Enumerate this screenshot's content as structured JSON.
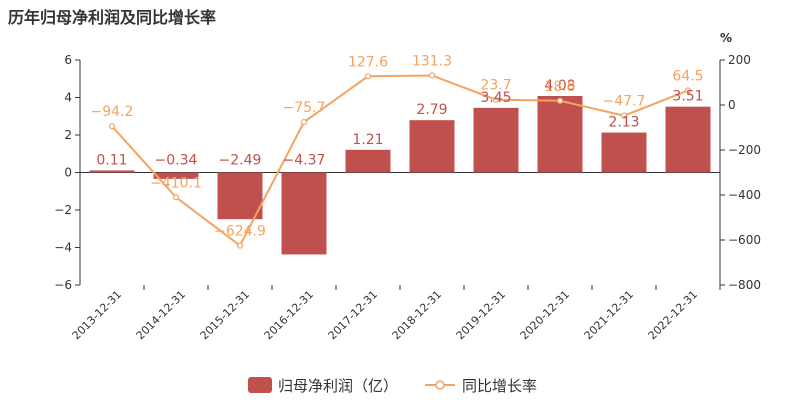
{
  "title": "历年归母净利润及同比增长率",
  "chart_data": {
    "type": "bar+line",
    "title": "历年归母净利润及同比增长率",
    "categories": [
      "2013-12-31",
      "2014-12-31",
      "2015-12-31",
      "2016-12-31",
      "2017-12-31",
      "2018-12-31",
      "2019-12-31",
      "2020-12-31",
      "2021-12-31",
      "2022-12-31"
    ],
    "series": [
      {
        "name": "归母净利润（亿）",
        "type": "bar",
        "axis": "left",
        "color": "#c0504d",
        "values": [
          0.11,
          -0.34,
          -2.49,
          -4.37,
          1.21,
          2.79,
          3.45,
          4.08,
          2.13,
          3.51
        ],
        "labels": [
          "0.11",
          "−0.34",
          "−2.49",
          "−4.37",
          "1.21",
          "2.79",
          "3.45",
          "4.08",
          "2.13",
          "3.51"
        ]
      },
      {
        "name": "同比增长率",
        "type": "line",
        "axis": "right",
        "color": "#f4a460",
        "values": [
          -94.2,
          -410.1,
          -624.9,
          -75.7,
          127.6,
          131.3,
          23.7,
          18.8,
          -47.7,
          64.5
        ],
        "labels": [
          "−94.2",
          "−410.1",
          "−624.9",
          "−75.7",
          "127.6",
          "131.3",
          "23.7",
          "18.8",
          "−47.7",
          "64.5"
        ]
      }
    ],
    "y_left": {
      "min": -6,
      "max": 6,
      "ticks": [
        -6,
        -4,
        -2,
        0,
        2,
        4,
        6
      ],
      "tick_labels": [
        "−6",
        "−4",
        "−2",
        "0",
        "2",
        "4",
        "6"
      ]
    },
    "y_right": {
      "min": -800,
      "max": 200,
      "ticks": [
        -800,
        -600,
        -400,
        -200,
        0,
        200
      ],
      "tick_labels": [
        "−800",
        "−600",
        "−400",
        "−200",
        "0",
        "200"
      ],
      "unit": "%"
    },
    "legend": {
      "position": "bottom-center",
      "items": [
        "归母净利润（亿）",
        "同比增长率"
      ]
    },
    "grid": false
  }
}
